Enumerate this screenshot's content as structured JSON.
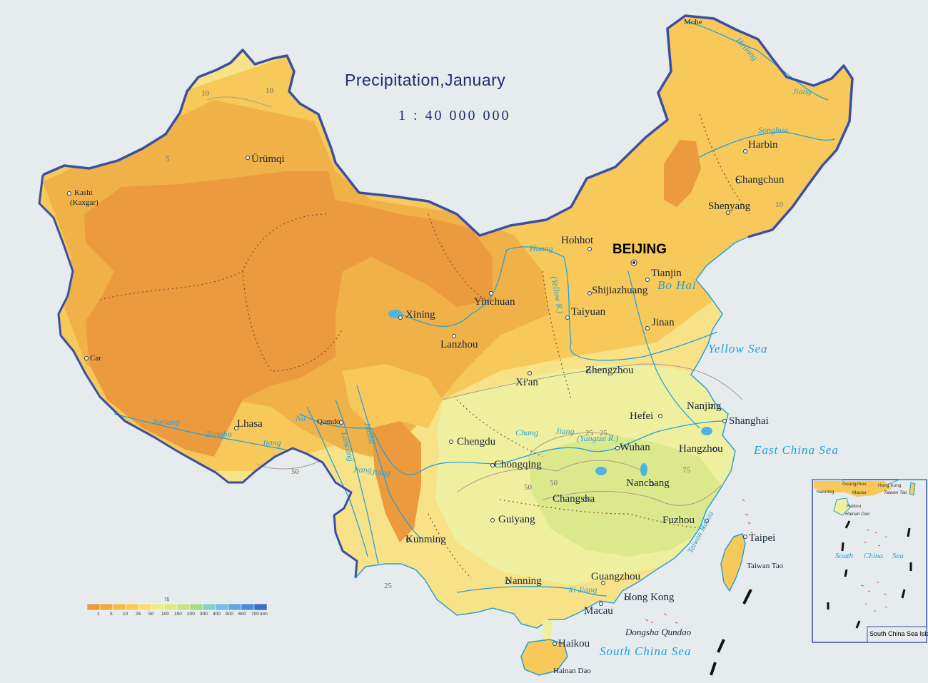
{
  "map": {
    "title": "Precipitation,January",
    "scale": "1 : 40 000 000",
    "capital": "BEIJING",
    "cities": {
      "mohe": "Mohe",
      "harbin": "Harbin",
      "changchun": "Changchun",
      "shenyang": "Shenyang",
      "hohhot": "Hohhot",
      "tianjin": "Tianjin",
      "shijiazhuang": "Shijiazhuang",
      "taiyuan": "Taiyuan",
      "jinan": "Jinan",
      "yinchuan": "Yinchuan",
      "xining": "Xining",
      "lanzhou": "Lanzhou",
      "urumqi": "Ürümqi",
      "kashi": "Kashi",
      "kaxgar": "(Kaxgar)",
      "car": "Car",
      "lhasa": "Lhasa",
      "qamdo": "Qamdo",
      "zhengzhou": "Zhengzhou",
      "xian": "Xi'an",
      "hefei": "Hefei",
      "nanjing": "Nanjing",
      "shanghai": "Shanghai",
      "hangzhou": "Hangzhou",
      "wuhan": "Wuhan",
      "chengdu": "Chengdu",
      "chongqing": "Chongqing",
      "nanchang": "Nanchang",
      "changsha": "Changsha",
      "guiyang": "Guiyang",
      "kunming": "Kunming",
      "fuzhou": "Fuzhou",
      "taipei": "Taipei",
      "guangzhou": "Guangzhou",
      "nanning": "Nanning",
      "hong_kong": "Hong Kong",
      "macau": "Macau",
      "haikou": "Haikou"
    },
    "seas": {
      "yellow_sea": "Yellow Sea",
      "east_china_sea": "East China Sea",
      "south_china_sea": "South China Sea",
      "bo_hai": "Bo Hai",
      "taiwan_haixia": "Taiwan Haixia"
    },
    "islands": {
      "dongsha_qundao": "Dongsha Qundao",
      "taiwan_tao": "Taiwan Tao",
      "hainan_dao": "Hainan Dao"
    },
    "rivers": {
      "heilong": "Heilong",
      "heilong_jiang": "Jiang",
      "songhua": "Songhua",
      "huang": "Huang",
      "yellow_r": "(Yellow R.)",
      "chang": "Chang",
      "chang_jiang": "Jiang",
      "yangtze_r": "(Yangtze R.)",
      "yarlung": "Yarlung",
      "zangbo": "Zangbo",
      "zangbo_jiang": "Jiang",
      "nu": "Nu",
      "lancang": "Lancang",
      "lancang_jiang": "Jiang",
      "jinsha": "Jinsha",
      "jinsha_jiang": "Jiang",
      "xi_jiang": "Xi Jiang"
    },
    "contours": [
      "10",
      "10",
      "5",
      "25",
      "25",
      "50",
      "50",
      "75",
      "10",
      "25",
      "50"
    ],
    "inset": {
      "caption": "South China Sea Islands",
      "guangzhou": "Guangzhou",
      "hong_kong": "Hong Kong",
      "macau": "Macau",
      "nanning": "Nanning",
      "haikou": "Haikou",
      "hainan_dao": "Hainan Dao",
      "taiwan_tao": "Taiwan Tao",
      "sea_word1": "South",
      "sea_word2": "China",
      "sea_word3": "Sea"
    },
    "legend": {
      "unit": "mm",
      "top_label": "75",
      "values": [
        "1",
        "5",
        "10",
        "25",
        "50",
        "100",
        "150",
        "200",
        "300",
        "400",
        "500",
        "600",
        "700"
      ],
      "colors": [
        "#eb9a3e",
        "#f0aa42",
        "#f5bb48",
        "#f8cc58",
        "#f7dd72",
        "#eeeb8a",
        "#dbea84",
        "#c9e283",
        "#a8d88c",
        "#8bd0c8",
        "#74bfe6",
        "#5ea7e2",
        "#4a8bd8",
        "#3d6cc6"
      ]
    },
    "colors": {
      "background": "#e6ecee",
      "precip_lt1": "#eb9a3e",
      "precip_1_5": "#f0b248",
      "precip_5_10": "#f6c95a",
      "precip_10_25": "#f8e288",
      "precip_25_50": "#eef0a0",
      "precip_50_75": "#dbe98c",
      "border": "#3b4fa2",
      "river": "#2aa0d8",
      "water_label": "#1e9fd8",
      "title": "#1e2a6e"
    }
  }
}
